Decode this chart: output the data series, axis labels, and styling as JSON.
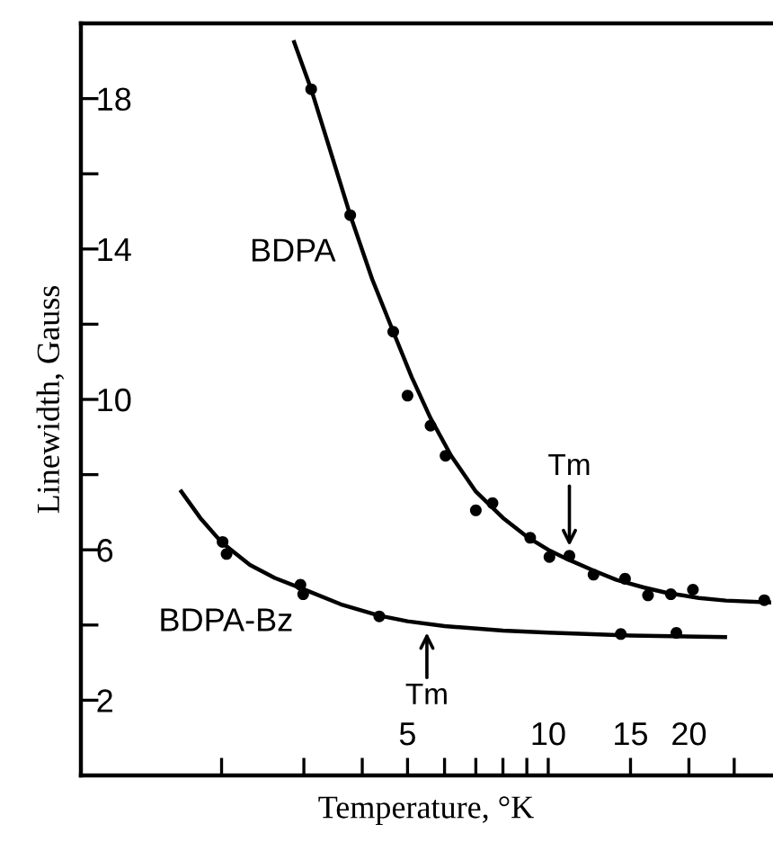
{
  "chart_data": {
    "type": "line",
    "xlabel": "Temperature, °K",
    "ylabel": "Linewidth, Gauss",
    "log": "x",
    "line_style": "solid",
    "grid": false,
    "xlim": [
      1,
      30
    ],
    "ylim": [
      0,
      20
    ],
    "xticks": [
      {
        "value": 2,
        "label": null
      },
      {
        "value": 3,
        "label": null
      },
      {
        "value": 4,
        "label": null
      },
      5,
      {
        "value": 6,
        "label": null
      },
      {
        "value": 7,
        "label": null
      },
      {
        "value": 8,
        "label": null
      },
      {
        "value": 9,
        "label": null
      },
      10,
      15,
      20,
      {
        "value": 25,
        "label": null
      }
    ],
    "yticks": [
      2,
      {
        "value": 4,
        "label": null
      },
      6,
      {
        "value": 8,
        "label": null
      },
      10,
      {
        "value": 12,
        "label": null
      },
      14,
      {
        "value": 16,
        "label": null
      },
      18
    ],
    "series": [
      {
        "name": "BDPA",
        "type": "scatter",
        "marker": "circle",
        "color": "#000000",
        "x": [
          3.11,
          3.77,
          4.66,
          5.0,
          5.6,
          6.03,
          7.0,
          7.6,
          9.15,
          10.06,
          11.1,
          12.5,
          14.6,
          16.35,
          18.3,
          20.4,
          29.0
        ],
        "values": [
          18.25,
          14.9,
          11.8,
          10.1,
          9.3,
          8.5,
          7.05,
          7.24,
          6.32,
          5.81,
          5.84,
          5.34,
          5.23,
          4.79,
          4.82,
          4.94,
          4.66
        ]
      },
      {
        "color": "#000000",
        "x": [
          2.86,
          3.11,
          3.4,
          3.77,
          4.2,
          4.66,
          5.1,
          5.6,
          6.2,
          7.0,
          8.0,
          9.0,
          10.0,
          11.0,
          12.5,
          14.0,
          16.0,
          18.0,
          21.0,
          24.0,
          30.0
        ],
        "values": [
          19.5,
          18.25,
          16.7,
          14.9,
          13.2,
          11.8,
          10.6,
          9.5,
          8.5,
          7.55,
          6.85,
          6.35,
          6.0,
          5.75,
          5.45,
          5.2,
          5.0,
          4.85,
          4.72,
          4.65,
          4.6
        ]
      },
      {
        "name": "BDPA-Bz",
        "type": "scatter",
        "marker": "circle",
        "color": "#000000",
        "x": [
          2.01,
          2.05,
          2.95,
          2.99,
          4.35,
          14.3,
          18.8
        ],
        "values": [
          6.21,
          5.89,
          5.07,
          4.82,
          4.23,
          3.76,
          3.79
        ]
      },
      {
        "color": "#000000",
        "x": [
          1.64,
          1.8,
          2.0,
          2.3,
          2.6,
          3.0,
          3.6,
          4.35,
          5.0,
          6.0,
          8.0,
          10.0,
          15.0,
          23.9
        ],
        "values": [
          7.55,
          6.85,
          6.2,
          5.6,
          5.25,
          4.95,
          4.55,
          4.25,
          4.1,
          3.97,
          3.85,
          3.8,
          3.72,
          3.68
        ]
      }
    ],
    "annotations": [
      {
        "text": "Tm",
        "x": 11.1,
        "y": 6.1
      },
      {
        "text": "Tm",
        "x": 5.5,
        "y": 3.8
      }
    ]
  }
}
